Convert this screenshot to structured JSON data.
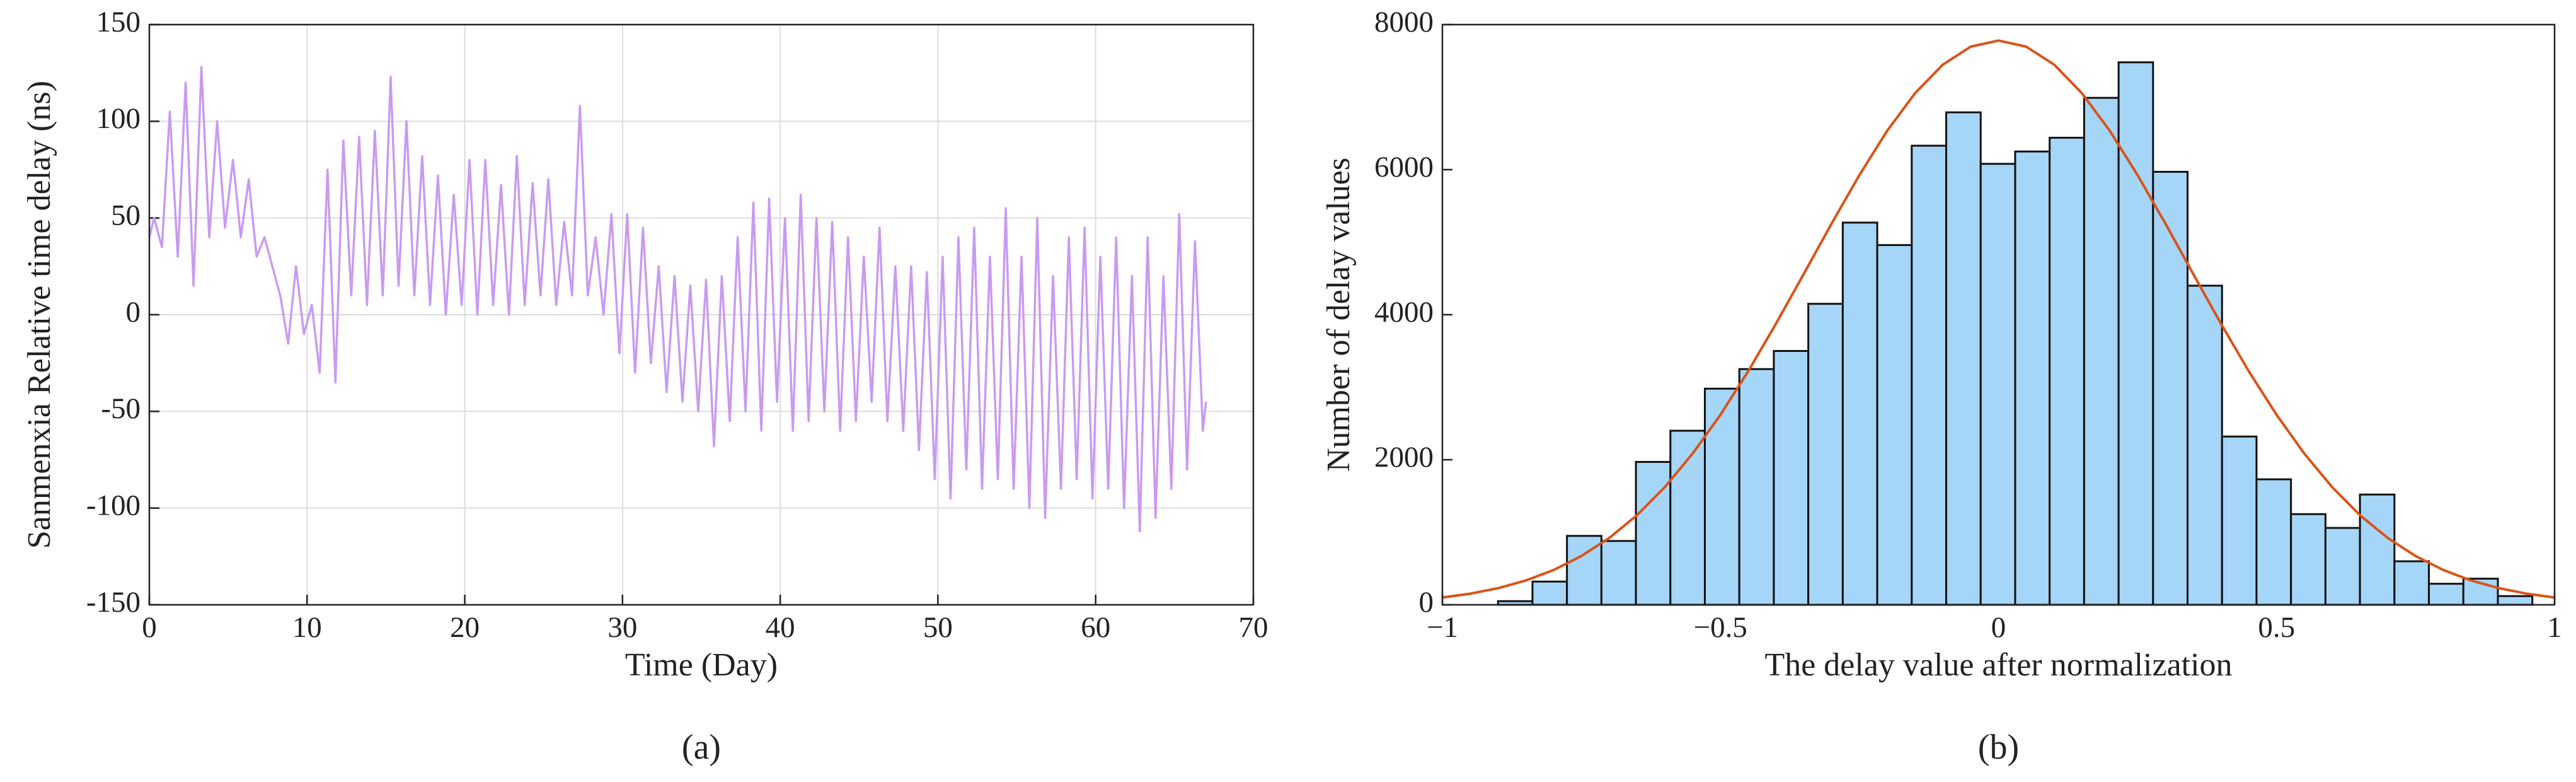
{
  "chart_data": [
    {
      "type": "line",
      "caption": "(a)",
      "xlabel": "Time (Day)",
      "ylabel": "Sanmenxia Relative time delay (ns)",
      "xlim": [
        0,
        70
      ],
      "xticks": [
        0,
        10,
        20,
        30,
        40,
        50,
        60,
        70
      ],
      "ylim": [
        -150,
        150
      ],
      "yticks": [
        -150,
        -100,
        -50,
        0,
        50,
        100,
        150
      ],
      "grid": true,
      "color": "#c99bf0",
      "x": [
        0,
        0.3,
        0.8,
        1.3,
        1.8,
        2.3,
        2.8,
        3.3,
        3.8,
        4.3,
        4.8,
        5.3,
        5.8,
        6.3,
        6.8,
        7.3,
        7.8,
        8.3,
        8.8,
        9.3,
        9.8,
        10.3,
        10.8,
        11.3,
        11.8,
        12.3,
        12.8,
        13.3,
        13.8,
        14.3,
        14.8,
        15.3,
        15.8,
        16.3,
        16.8,
        17.3,
        17.8,
        18.3,
        18.8,
        19.3,
        19.8,
        20.3,
        20.8,
        21.3,
        21.8,
        22.3,
        22.8,
        23.3,
        23.8,
        24.3,
        24.8,
        25.3,
        25.8,
        26.3,
        26.8,
        27.3,
        27.8,
        28.3,
        28.8,
        29.3,
        29.8,
        30.3,
        30.8,
        31.3,
        31.8,
        32.3,
        32.8,
        33.3,
        33.8,
        34.3,
        34.8,
        35.3,
        35.8,
        36.3,
        36.8,
        37.3,
        37.8,
        38.3,
        38.8,
        39.3,
        39.8,
        40.3,
        40.8,
        41.3,
        41.8,
        42.3,
        42.8,
        43.3,
        43.8,
        44.3,
        44.8,
        45.3,
        45.8,
        46.3,
        46.8,
        47.3,
        47.8,
        48.3,
        48.8,
        49.3,
        49.8,
        50.3,
        50.8,
        51.3,
        51.8,
        52.3,
        52.8,
        53.3,
        53.8,
        54.3,
        54.8,
        55.3,
        55.8,
        56.3,
        56.8,
        57.3,
        57.8,
        58.3,
        58.8,
        59.3,
        59.8,
        60.3,
        60.8,
        61.3,
        61.8,
        62.3,
        62.8,
        63.3,
        63.8,
        64.3,
        64.8,
        65.3,
        65.8,
        66.3,
        66.8,
        67
      ],
      "values": [
        40,
        50,
        35,
        105,
        30,
        120,
        15,
        128,
        40,
        100,
        45,
        80,
        40,
        70,
        30,
        40,
        25,
        10,
        -15,
        25,
        -10,
        5,
        -30,
        75,
        -35,
        90,
        10,
        92,
        5,
        95,
        10,
        123,
        15,
        100,
        10,
        82,
        5,
        72,
        0,
        62,
        5,
        80,
        0,
        80,
        5,
        67,
        0,
        82,
        5,
        68,
        10,
        70,
        5,
        48,
        10,
        108,
        10,
        40,
        0,
        52,
        -20,
        52,
        -30,
        45,
        -25,
        25,
        -40,
        20,
        -45,
        15,
        -50,
        18,
        -68,
        20,
        -55,
        40,
        -50,
        58,
        -60,
        60,
        -45,
        50,
        -60,
        62,
        -55,
        50,
        -50,
        48,
        -60,
        40,
        -55,
        30,
        -45,
        45,
        -55,
        25,
        -60,
        25,
        -70,
        22,
        -85,
        30,
        -95,
        40,
        -80,
        45,
        -90,
        30,
        -85,
        55,
        -90,
        30,
        -100,
        50,
        -105,
        20,
        -90,
        40,
        -85,
        45,
        -95,
        30,
        -90,
        40,
        -100,
        20,
        -112,
        40,
        -105,
        20,
        -90,
        52,
        -80,
        38,
        -60,
        -45
      ]
    },
    {
      "type": "histogram",
      "caption": "(b)",
      "xlabel": "The delay value after normalization",
      "ylabel": "Number of delay values",
      "xlim": [
        -1,
        1
      ],
      "xticks": [
        {
          "value": -1,
          "label": "−1"
        },
        {
          "value": -0.5,
          "label": "−0.5"
        },
        0,
        0.5,
        1
      ],
      "ylim": [
        0,
        8000
      ],
      "yticks": [
        0,
        2000,
        4000,
        6000,
        8000
      ],
      "grid": false,
      "color": "#a6d6f7",
      "bins": [
        -0.9,
        -0.838,
        -0.776,
        -0.714,
        -0.652,
        -0.59,
        -0.528,
        -0.466,
        -0.404,
        -0.342,
        -0.28,
        -0.218,
        -0.156,
        -0.094,
        -0.032,
        0.03,
        0.092,
        0.154,
        0.216,
        0.278,
        0.34,
        0.402,
        0.464,
        0.526,
        0.588,
        0.65,
        0.712,
        0.774,
        0.836,
        0.898,
        0.96
      ],
      "values": [
        50,
        320,
        950,
        880,
        1970,
        2400,
        2980,
        3250,
        3500,
        4150,
        5270,
        4960,
        6330,
        6790,
        6080,
        6250,
        6440,
        6990,
        7480,
        5970,
        4400,
        2320,
        1730,
        1250,
        1060,
        1520,
        600,
        290,
        360,
        120
      ],
      "fit": {
        "color": "#d95319",
        "x": [
          -1,
          -0.95,
          -0.9,
          -0.85,
          -0.8,
          -0.75,
          -0.7,
          -0.65,
          -0.6,
          -0.55,
          -0.5,
          -0.45,
          -0.4,
          -0.35,
          -0.3,
          -0.25,
          -0.2,
          -0.15,
          -0.1,
          -0.05,
          0,
          0.05,
          0.1,
          0.15,
          0.2,
          0.25,
          0.3,
          0.35,
          0.4,
          0.45,
          0.5,
          0.55,
          0.6,
          0.65,
          0.7,
          0.75,
          0.8,
          0.85,
          0.9,
          0.95,
          1
        ],
        "values": [
          100,
          153,
          229,
          335,
          479,
          672,
          921,
          1236,
          1623,
          2084,
          2620,
          3222,
          3877,
          4564,
          5258,
          5927,
          6537,
          7054,
          7449,
          7696,
          7780,
          7696,
          7449,
          7054,
          6537,
          5927,
          5258,
          4564,
          3877,
          3222,
          2620,
          2084,
          1623,
          1236,
          921,
          672,
          479,
          335,
          229,
          153,
          100
        ]
      }
    }
  ]
}
